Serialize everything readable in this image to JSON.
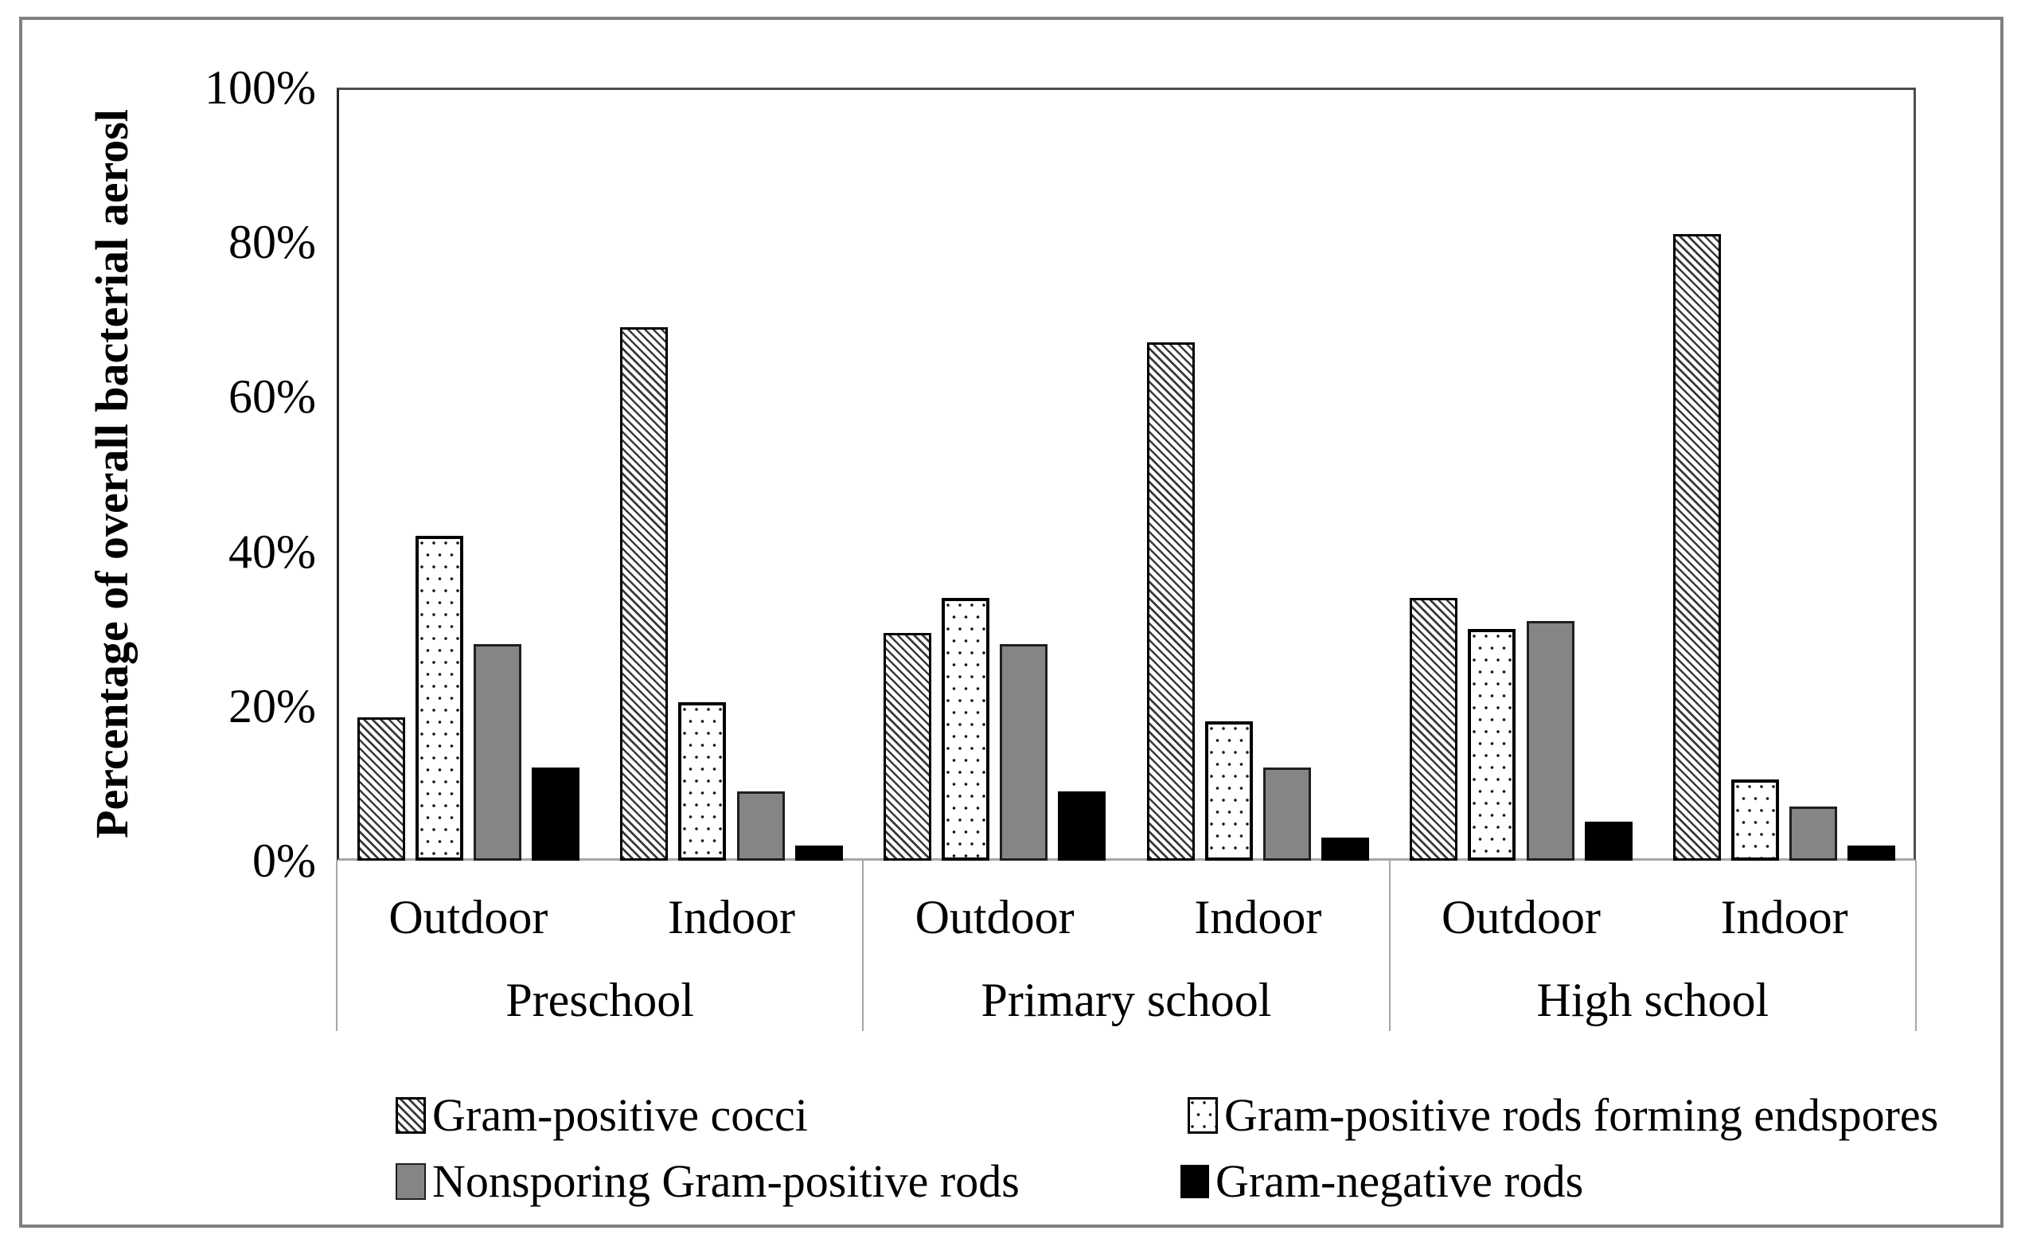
{
  "y_axis": {
    "title": "Percentage of overall bacterial aerosl",
    "tick_labels": [
      "0%",
      "20%",
      "40%",
      "60%",
      "80%",
      "100%"
    ]
  },
  "chart_data": {
    "type": "bar",
    "title": "",
    "xlabel": "",
    "ylabel": "Percentage of overall bacterial aerosl",
    "ylim": [
      0,
      100
    ],
    "ytick_values": [
      0,
      20,
      40,
      60,
      80,
      100
    ],
    "ytick_labels": [
      "0%",
      "20%",
      "40%",
      "60%",
      "80%",
      "100%"
    ],
    "grid": true,
    "legend_position": "bottom",
    "group_labels": [
      "Preschool",
      "Primary school",
      "High school"
    ],
    "subgroup_labels": [
      "Outdoor",
      "Indoor"
    ],
    "columns": [
      "Preschool Outdoor",
      "Preschool Indoor",
      "Primary school Outdoor",
      "Primary school Indoor",
      "High school Outdoor",
      "High school Indoor"
    ],
    "series": [
      {
        "name": "Gram-positive cocci",
        "pattern": "diagonal-hatch",
        "values": [
          18.5,
          69,
          29.5,
          67,
          34,
          81
        ]
      },
      {
        "name": "Gram-positive rods forming endspores",
        "pattern": "dots",
        "values": [
          42,
          20.5,
          34,
          18,
          30,
          10.5
        ]
      },
      {
        "name": "Nonsporing Gram-positive rods",
        "pattern": "solid-gray",
        "values": [
          28,
          9,
          28,
          12,
          31,
          7
        ]
      },
      {
        "name": "Gram-negative rods",
        "pattern": "solid-black",
        "values": [
          12,
          2,
          9,
          3,
          5,
          2
        ]
      }
    ],
    "colors": {
      "gray_fill": "#858585",
      "black_fill": "#000000",
      "hatch_line": "#000000",
      "gridline": "#a6a6a6",
      "plot_border": "#4d4d4d",
      "outer_frame": "#808080"
    }
  }
}
